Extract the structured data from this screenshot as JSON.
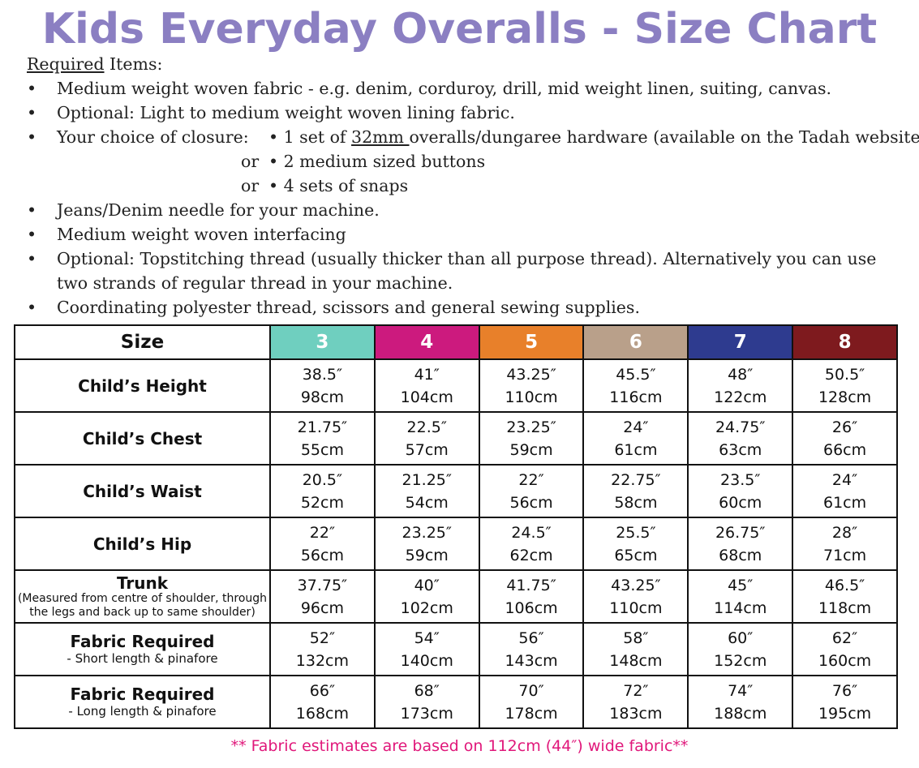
{
  "title": "Kids Everyday Overalls - Size Chart",
  "required": {
    "heading_u": "Required",
    "heading_rest": " Items:",
    "bullet": "•",
    "items": [
      "Medium weight woven fabric - e.g. denim, corduroy, drill, mid weight linen, suiting, canvas.",
      "Optional: Light to medium weight woven lining fabric."
    ],
    "closure": {
      "label": "Your choice of closure:",
      "opt1_pre": "• 1 set of ",
      "opt1_u": "32mm ",
      "opt1_post": "overalls/dungaree hardware (available on the Tadah website)",
      "or": "or",
      "opt2": "• 2 medium sized buttons",
      "opt3": "•  4 sets of snaps"
    },
    "items2": [
      "Jeans/Denim needle for your machine.",
      "Medium weight woven interfacing",
      "Optional: Topstitching thread (usually thicker than all purpose thread). Alternatively you can use two strands of regular thread in your machine.",
      "Coordinating polyester thread, scissors and general sewing supplies."
    ]
  },
  "table": {
    "size_header": "Size",
    "sizes": [
      {
        "label": "3",
        "color": "#6fcfbf"
      },
      {
        "label": "4",
        "color": "#cc1a7e"
      },
      {
        "label": "5",
        "color": "#e8802a"
      },
      {
        "label": "6",
        "color": "#b9a08a"
      },
      {
        "label": "7",
        "color": "#2e3b8f"
      },
      {
        "label": "8",
        "color": "#7e1a1e"
      }
    ],
    "rows": [
      {
        "label": "Child’s Height",
        "cells": [
          [
            "38.5″",
            "98cm"
          ],
          [
            "41″",
            "104cm"
          ],
          [
            "43.25″",
            "110cm"
          ],
          [
            "45.5″",
            "116cm"
          ],
          [
            "48″",
            "122cm"
          ],
          [
            "50.5″",
            "128cm"
          ]
        ]
      },
      {
        "label": "Child’s Chest",
        "cells": [
          [
            "21.75″",
            "55cm"
          ],
          [
            "22.5″",
            "57cm"
          ],
          [
            "23.25″",
            "59cm"
          ],
          [
            "24″",
            "61cm"
          ],
          [
            "24.75″",
            "63cm"
          ],
          [
            "26″",
            "66cm"
          ]
        ]
      },
      {
        "label": "Child’s Waist",
        "cells": [
          [
            "20.5″",
            "52cm"
          ],
          [
            "21.25″",
            "54cm"
          ],
          [
            "22″",
            "56cm"
          ],
          [
            "22.75″",
            "58cm"
          ],
          [
            "23.5″",
            "60cm"
          ],
          [
            "24″",
            "61cm"
          ]
        ]
      },
      {
        "label": "Child’s Hip",
        "cells": [
          [
            "22″",
            "56cm"
          ],
          [
            "23.25″",
            "59cm"
          ],
          [
            "24.5″",
            "62cm"
          ],
          [
            "25.5″",
            "65cm"
          ],
          [
            "26.75″",
            "68cm"
          ],
          [
            "28″",
            "71cm"
          ]
        ]
      },
      {
        "label": "Trunk",
        "sub": "(Measured from centre of shoulder, through the legs and back up to same shoulder)",
        "cells": [
          [
            "37.75″",
            "96cm"
          ],
          [
            "40″",
            "102cm"
          ],
          [
            "41.75″",
            "106cm"
          ],
          [
            "43.25″",
            "110cm"
          ],
          [
            "45″",
            "114cm"
          ],
          [
            "46.5″",
            "118cm"
          ]
        ]
      },
      {
        "label": "Fabric Required",
        "sub2": "- Short length & pinafore",
        "cells": [
          [
            "52″",
            "132cm"
          ],
          [
            "54″",
            "140cm"
          ],
          [
            "56″",
            "143cm"
          ],
          [
            "58″",
            "148cm"
          ],
          [
            "60″",
            "152cm"
          ],
          [
            "62″",
            "160cm"
          ]
        ]
      },
      {
        "label": "Fabric Required",
        "sub2": "- Long length & pinafore",
        "cells": [
          [
            "66″",
            "168cm"
          ],
          [
            "68″",
            "173cm"
          ],
          [
            "70″",
            "178cm"
          ],
          [
            "72″",
            "183cm"
          ],
          [
            "74″",
            "188cm"
          ],
          [
            "76″",
            "195cm"
          ]
        ]
      }
    ]
  },
  "footnote": "** Fabric estimates are based on 112cm (44″) wide fabric**"
}
